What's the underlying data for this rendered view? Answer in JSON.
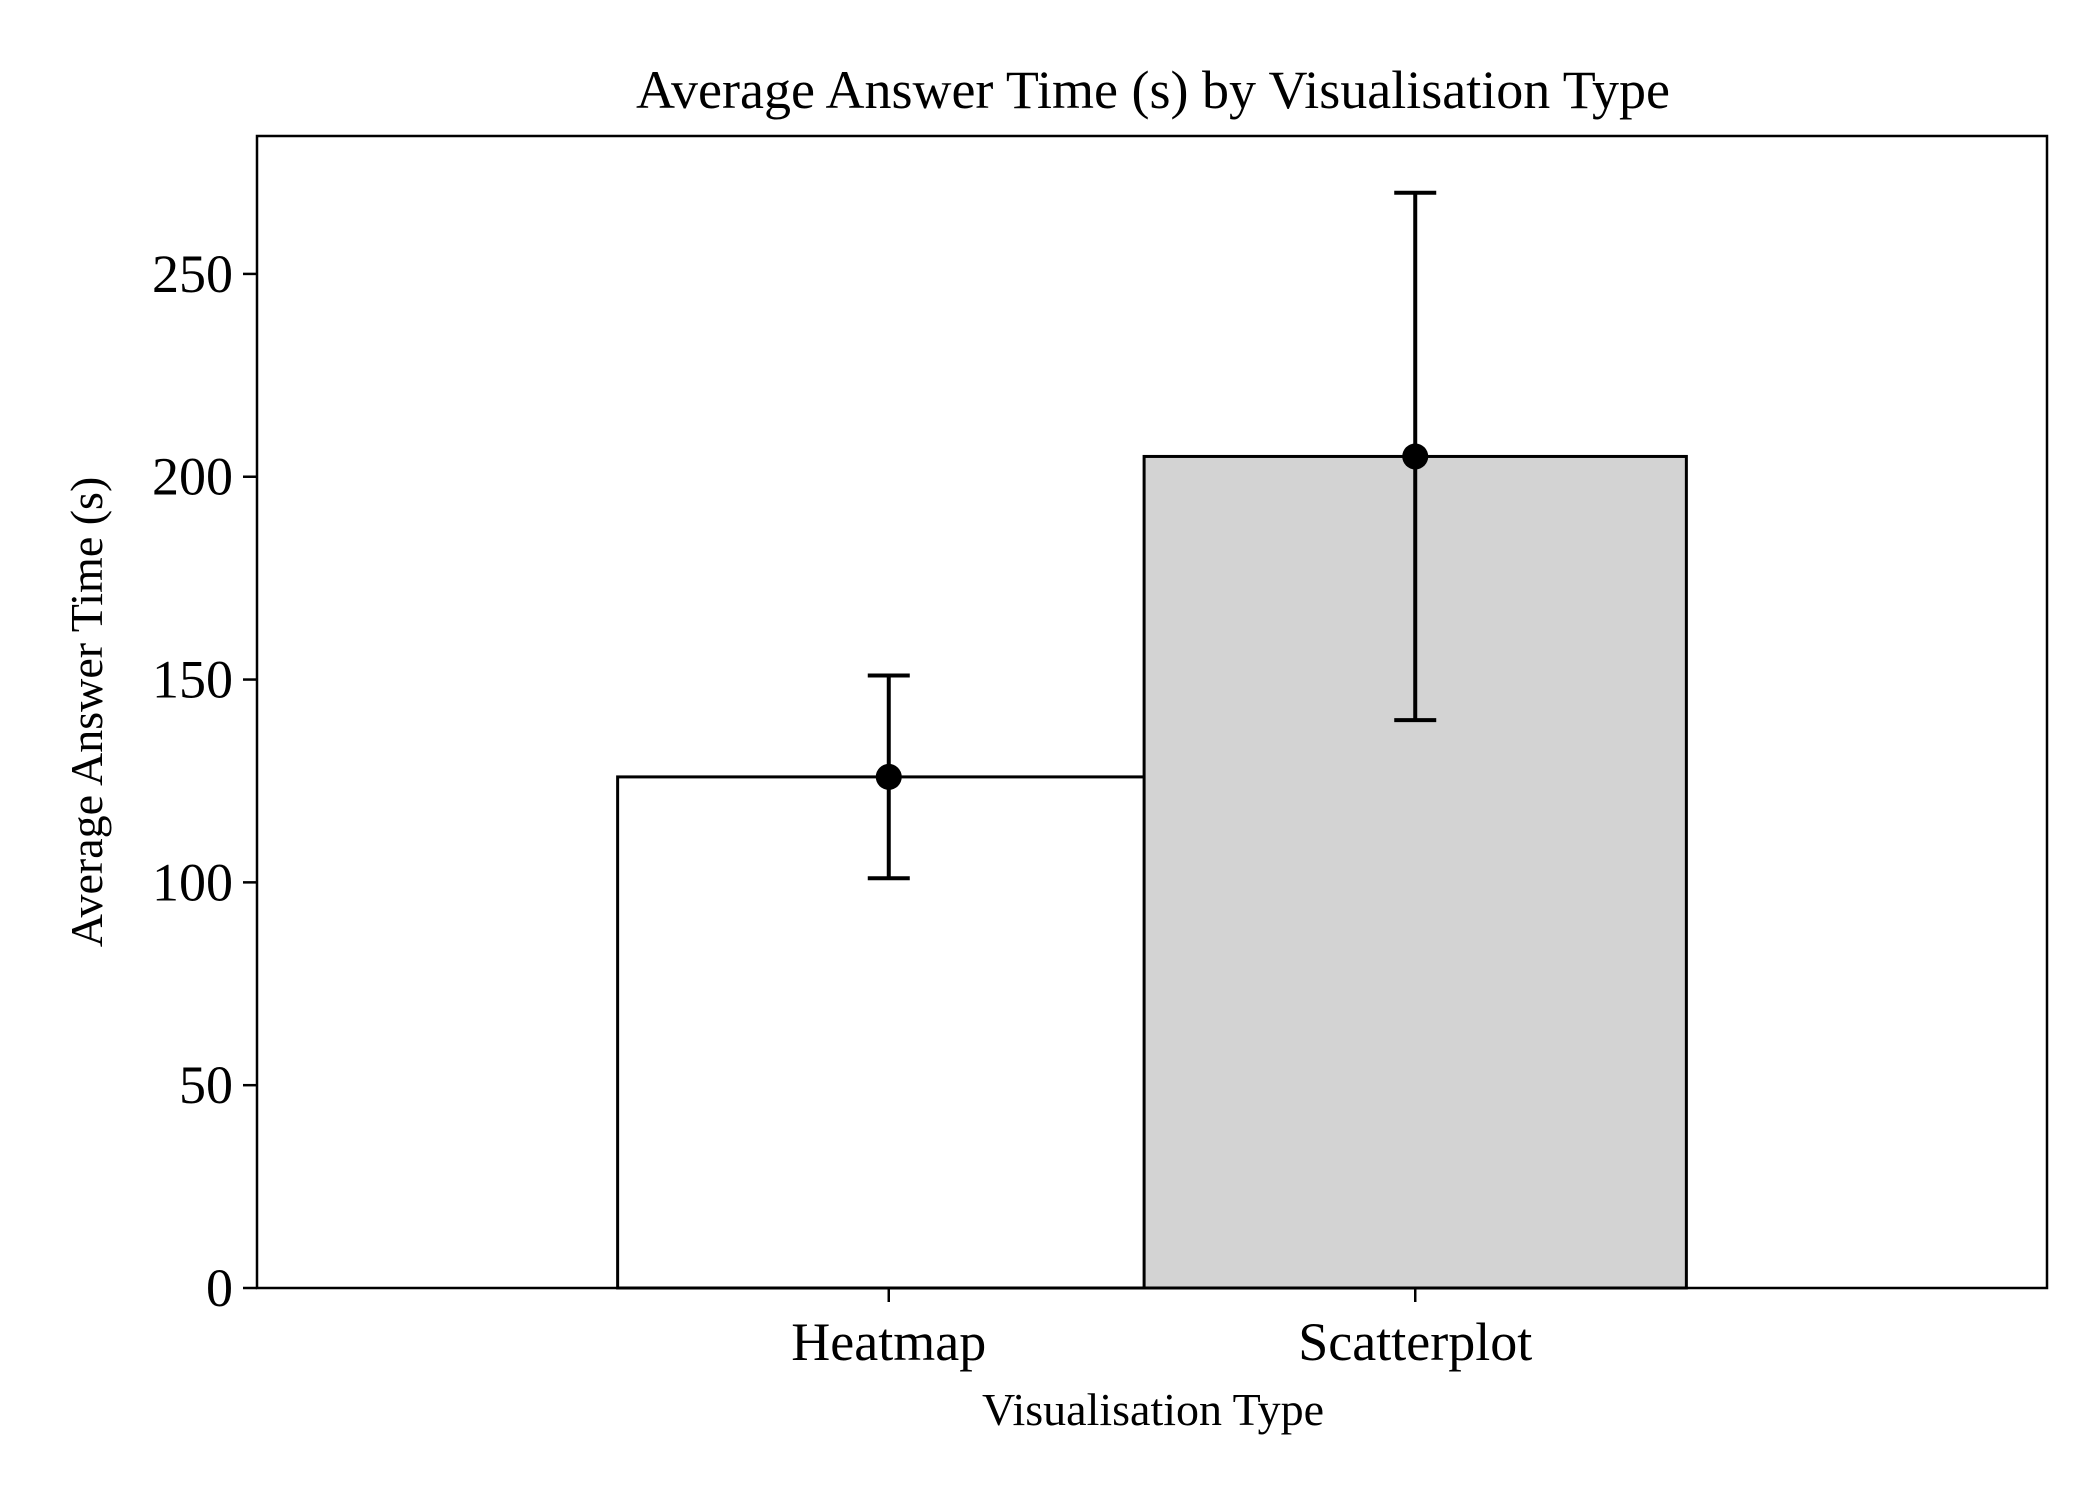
{
  "chart_data": {
    "type": "bar",
    "title": "Average Answer Time (s) by Visualisation Type",
    "xlabel": "Visualisation Type",
    "ylabel": "Average Answer Time (s)",
    "categories": [
      "Heatmap",
      "Scatterplot"
    ],
    "values": [
      126,
      205
    ],
    "error_low": [
      101,
      140
    ],
    "error_high": [
      151,
      270
    ],
    "bar_colors": [
      "#ffffff",
      "#d3d3d3"
    ],
    "edge_color": "#000000",
    "ylim": [
      0,
      284
    ],
    "yticks": [
      0,
      50,
      100,
      150,
      200,
      250
    ],
    "grid": false,
    "legend": "none"
  }
}
